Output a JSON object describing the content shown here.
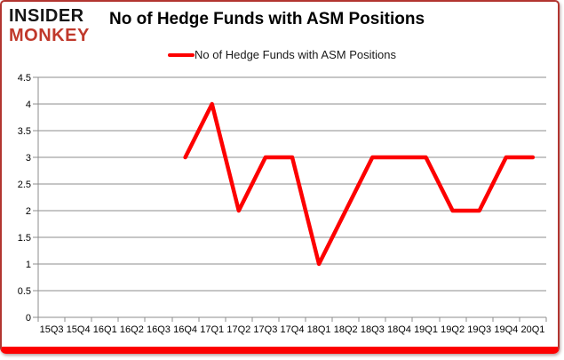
{
  "logo": {
    "line1": "INSIDER",
    "line2": "MONKEY"
  },
  "header": {
    "title": "No of Hedge Funds with ASM Positions"
  },
  "legend": {
    "label": "No of Hedge Funds with ASM Positions",
    "color": "#fd0000"
  },
  "chart_data": {
    "type": "line",
    "title": "No of Hedge Funds with ASM Positions",
    "categories": [
      "15Q3",
      "15Q4",
      "16Q1",
      "16Q2",
      "16Q3",
      "16Q4",
      "17Q1",
      "17Q2",
      "17Q3",
      "17Q4",
      "18Q1",
      "18Q2",
      "18Q3",
      "18Q4",
      "19Q1",
      "19Q2",
      "19Q3",
      "19Q4",
      "20Q1"
    ],
    "series": [
      {
        "name": "No of Hedge Funds with ASM Positions",
        "color": "#fd0000",
        "values": [
          null,
          null,
          null,
          null,
          null,
          3,
          4,
          2,
          3,
          3,
          1,
          2,
          3,
          3,
          3,
          2,
          2,
          3,
          3
        ]
      }
    ],
    "xlabel": "",
    "ylabel": "",
    "ylim": [
      0,
      4.5
    ],
    "ytick_step": 0.5,
    "grid": "horizontal",
    "legend_position": "top-center",
    "colors": {
      "gridline": "#8c8c8c",
      "axis": "#8c8c8c",
      "tick_label": "#000000"
    }
  }
}
